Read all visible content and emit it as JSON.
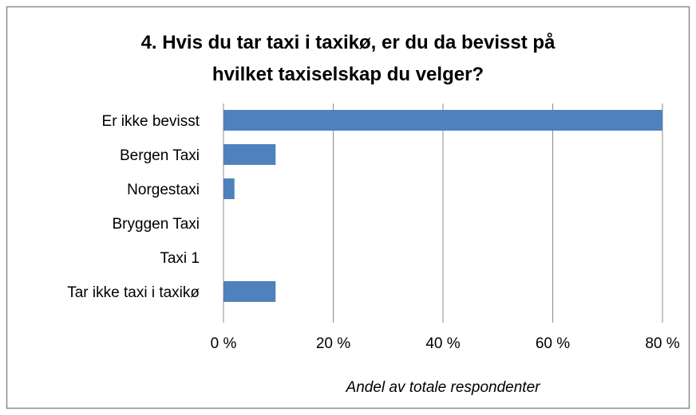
{
  "chart_data": {
    "type": "bar",
    "orientation": "horizontal",
    "title": "4. Hvis du tar taxi i taxikø, er du da bevisst på\nhvilket taxiselskap du velger?",
    "categories": [
      "Er ikke bevisst",
      "Bergen Taxi",
      "Norgestaxi",
      "Bryggen Taxi",
      "Taxi 1",
      "Tar ikke taxi i taxikø"
    ],
    "values": [
      80,
      9.5,
      2,
      0,
      0,
      9.5
    ],
    "color": "#4f81bd",
    "x_label": "Andel av totale respondenter",
    "xlim": [
      0,
      80
    ],
    "xticks": [
      {
        "value": 0,
        "label": "0 %"
      },
      {
        "value": 20,
        "label": "20 %"
      },
      {
        "value": 40,
        "label": "40 %"
      },
      {
        "value": 60,
        "label": "60 %"
      },
      {
        "value": 80,
        "label": "80 %"
      }
    ],
    "grid": true
  }
}
